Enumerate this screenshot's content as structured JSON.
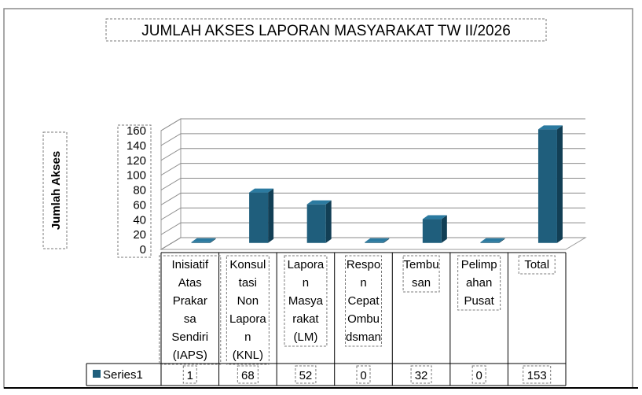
{
  "chart_data": {
    "type": "bar",
    "title": "JUMLAH AKSES LAPORAN MASYARAKAT TW II/2026",
    "ylabel": "Jumlah Akses",
    "xlabel": "",
    "ylim": [
      0,
      160
    ],
    "yticks": [
      "0",
      "20",
      "40",
      "60",
      "80",
      "100",
      "120",
      "140",
      "160"
    ],
    "categories": [
      [
        "Inisiatif",
        "Atas",
        "Prakar",
        "sa",
        "Sendiri",
        "(IAPS)"
      ],
      [
        "Konsul",
        "tasi",
        "Non",
        "Lapora",
        "n",
        "(KNL)"
      ],
      [
        "Lapora",
        "n",
        "Masya",
        "rakat",
        "(LM)"
      ],
      [
        "Respo",
        "n",
        "Cepat",
        "Ombu",
        "dsman"
      ],
      [
        "Tembu",
        "san"
      ],
      [
        "Pelimp",
        "ahan",
        "Pusat"
      ],
      [
        "Total"
      ]
    ],
    "series": [
      {
        "name": "Series1",
        "values": [
          1,
          68,
          52,
          0,
          32,
          0,
          153
        ],
        "color": "#1f5e7c"
      }
    ],
    "grid": true,
    "legend": "data-table-left",
    "style": "3d"
  }
}
